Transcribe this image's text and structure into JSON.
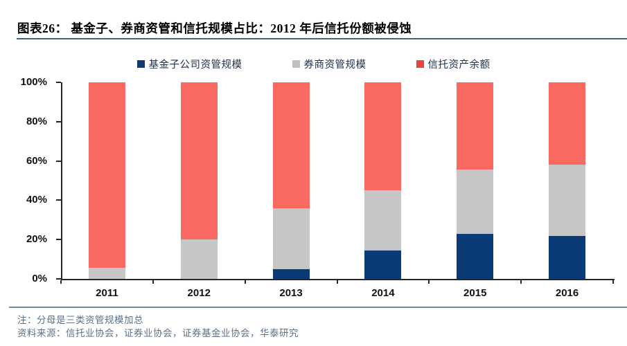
{
  "header": {
    "title": "图表26：  基金子、券商资管和信托规模占比：2012 年后信托份额被侵蚀"
  },
  "chart_data": {
    "type": "bar",
    "stacked": true,
    "categories": [
      "2011",
      "2012",
      "2013",
      "2014",
      "2015",
      "2016"
    ],
    "series": [
      {
        "name": "基金子公司资管规模",
        "color": "#0b3b76",
        "legend_color": "#123a6d",
        "values": [
          0,
          0,
          5,
          14.5,
          23,
          22
        ]
      },
      {
        "name": "券商资管规模",
        "color": "#c6c6c6",
        "legend_color": "#bfbfbf",
        "values": [
          5.5,
          20,
          31,
          30.5,
          32.5,
          36
        ]
      },
      {
        "name": "信托资产余额",
        "color": "#fa6a63",
        "legend_color": "#e8453f",
        "values": [
          94.5,
          80,
          64,
          55,
          44.5,
          42
        ]
      }
    ],
    "title": "基金子、券商资管和信托规模占比：2012 年后信托份额被侵蚀",
    "xlabel": "",
    "ylabel": "",
    "ylim": [
      0,
      100
    ],
    "yticks": [
      0,
      20,
      40,
      60,
      80,
      100
    ],
    "ytick_labels": [
      "0%",
      "20%",
      "40%",
      "60%",
      "80%",
      "100%"
    ],
    "grid": false,
    "legend_position": "top"
  },
  "footer": {
    "note": "注：分母是三类资管规模加总",
    "source": "资料来源：信托业协会，证券业协会，证券基金业协会，华泰研究"
  },
  "colors": {
    "title_underline": "#3f6485",
    "footer_line": "#6f8ca1",
    "axis": "#262626",
    "fund_sub_blue": "#0b3b76",
    "broker_gray": "#c6c6c6",
    "trust_red": "#fa6a63"
  }
}
